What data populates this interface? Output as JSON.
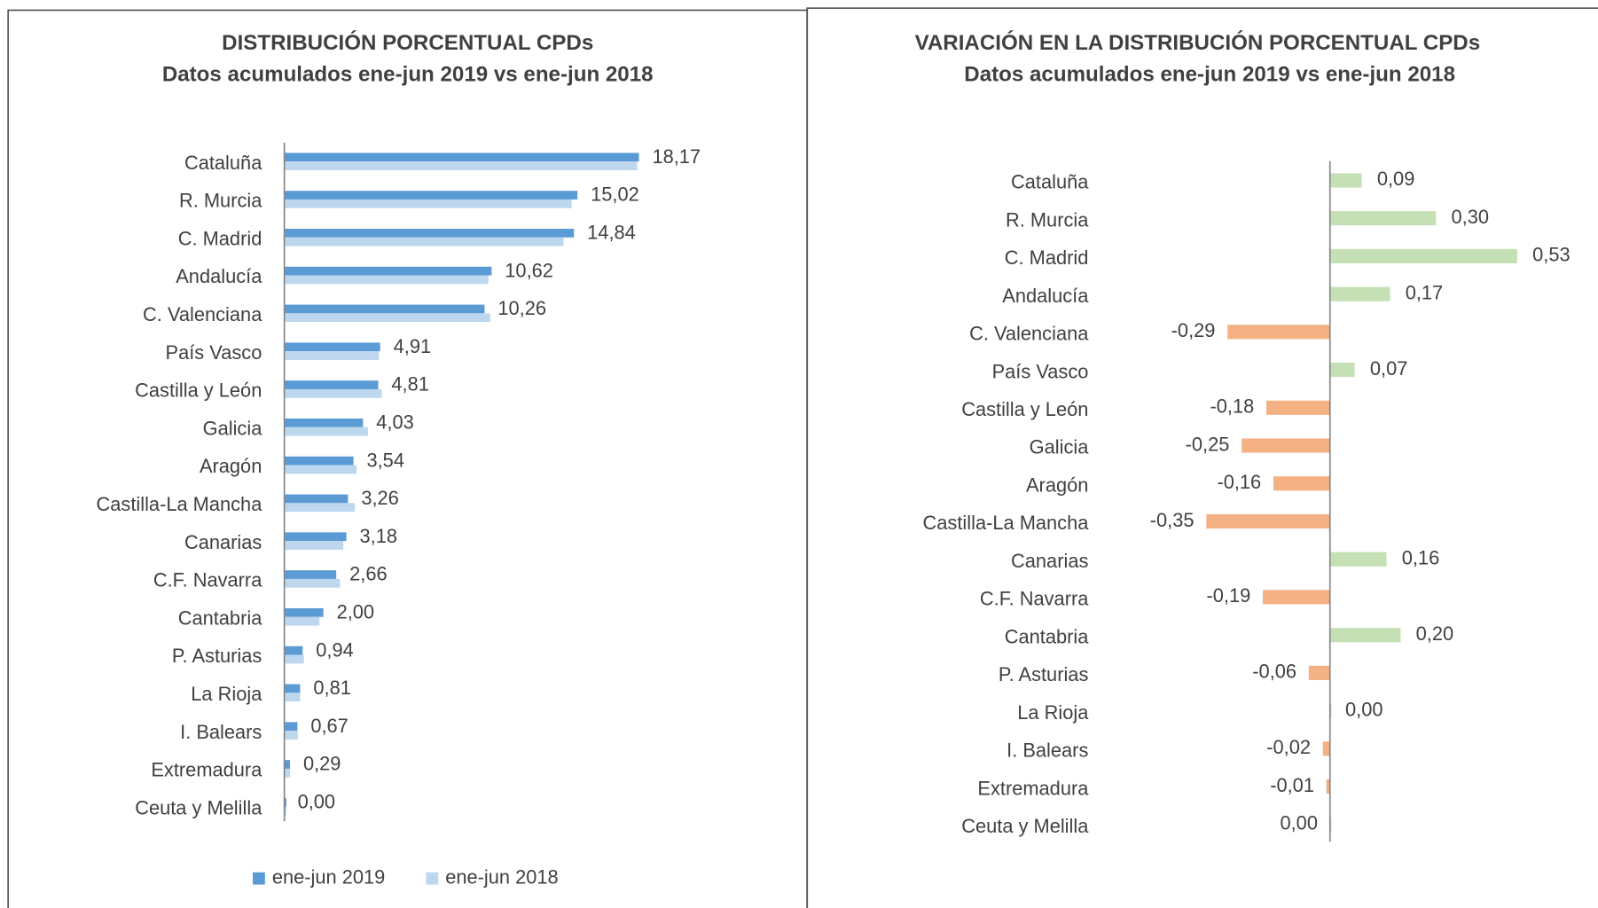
{
  "chart_data": [
    {
      "type": "hbar",
      "title": "DISTRIBUCIÓN PORCENTUAL CPDs",
      "subtitle": "Datos acumulados ene-jun 2019 vs ene-jun 2018",
      "categories": [
        "Cataluña",
        "R. Murcia",
        "C. Madrid",
        "Andalucía",
        "C. Valenciana",
        "País Vasco",
        "Castilla y León",
        "Galicia",
        "Aragón",
        "Castilla-La Mancha",
        "Canarias",
        "C.F. Navarra",
        "Cantabria",
        "P. Asturias",
        "La Rioja",
        "I. Balears",
        "Extremadura",
        "Ceuta y Melilla"
      ],
      "series": [
        {
          "name": "ene-jun 2019",
          "color": "#5b9bd5",
          "values": [
            18.17,
            15.02,
            14.84,
            10.62,
            10.26,
            4.91,
            4.81,
            4.03,
            3.54,
            3.26,
            3.18,
            2.66,
            2.0,
            0.94,
            0.81,
            0.67,
            0.29,
            0.0
          ],
          "value_labels": [
            "18,17",
            "15,02",
            "14,84",
            "10,62",
            "10,26",
            "4,91",
            "4,81",
            "4,03",
            "3,54",
            "3,26",
            "3,18",
            "2,66",
            "2,00",
            "0,94",
            "0,81",
            "0,67",
            "0,29",
            "0,00"
          ]
        },
        {
          "name": "ene-jun 2018",
          "color": "#bdd7ee",
          "values": [
            18.08,
            14.72,
            14.31,
            10.45,
            10.55,
            4.84,
            4.99,
            4.28,
            3.7,
            3.61,
            3.02,
            2.85,
            1.8,
            1.0,
            0.81,
            0.69,
            0.3,
            0.0
          ]
        }
      ],
      "xlim": [
        0,
        20
      ],
      "legend": "bottom"
    },
    {
      "type": "diverging",
      "title": "VARIACIÓN EN LA DISTRIBUCIÓN PORCENTUAL CPDs",
      "subtitle": "Datos acumulados ene-jun 2019 vs ene-jun 2018",
      "categories": [
        "Cataluña",
        "R. Murcia",
        "C. Madrid",
        "Andalucía",
        "C. Valenciana",
        "País Vasco",
        "Castilla y León",
        "Galicia",
        "Aragón",
        "Castilla-La Mancha",
        "Canarias",
        "C.F. Navarra",
        "Cantabria",
        "P. Asturias",
        "La Rioja",
        "I. Balears",
        "Extremadura",
        "Ceuta y Melilla"
      ],
      "values": [
        0.09,
        0.3,
        0.53,
        0.17,
        -0.29,
        0.07,
        -0.18,
        -0.25,
        -0.16,
        -0.35,
        0.16,
        -0.19,
        0.2,
        -0.06,
        0.0,
        -0.02,
        -0.01,
        0.0
      ],
      "value_labels": [
        "0,09",
        "0,30",
        "0,53",
        "0,17",
        "-0,29",
        "0,07",
        "-0,18",
        "-0,25",
        "-0,16",
        "-0,35",
        "0,16",
        "-0,19",
        "0,20",
        "-0,06",
        "0,00",
        "-0,02",
        "-0,01",
        "0,00"
      ],
      "color_positive": "#c5e0b4",
      "color_negative": "#f4b183",
      "xlim": [
        -0.6,
        0.6
      ]
    }
  ]
}
